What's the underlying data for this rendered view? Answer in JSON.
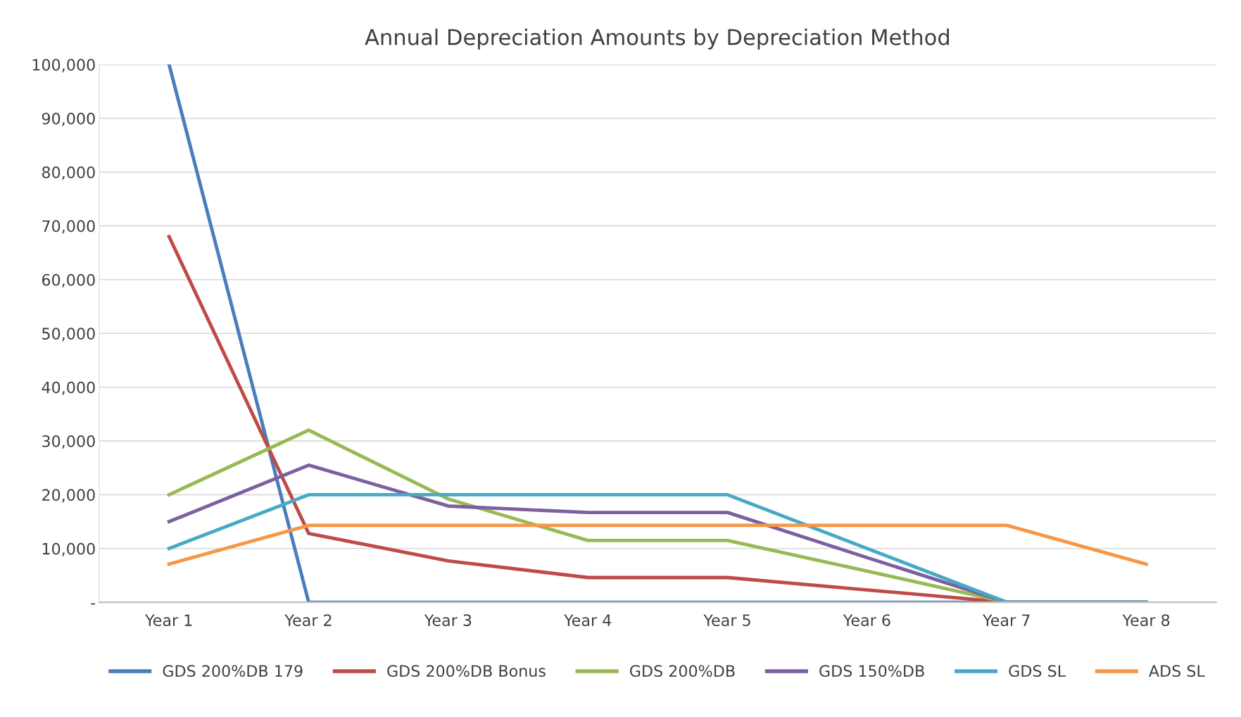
{
  "chart_data": {
    "type": "line",
    "title": "Annual Depreciation Amounts by Depreciation Method",
    "categories": [
      "Year 1",
      "Year 2",
      "Year 3",
      "Year 4",
      "Year 5",
      "Year 6",
      "Year 7",
      "Year 8"
    ],
    "series": [
      {
        "name": "GDS 200%DB 179",
        "color": "#4a7ebb",
        "values": [
          100000,
          0,
          0,
          0,
          0,
          0,
          0,
          0
        ]
      },
      {
        "name": "GDS 200%DB Bonus",
        "color": "#be4b48",
        "values": [
          68000,
          12800,
          7700,
          4600,
          4600,
          2300,
          0,
          0
        ]
      },
      {
        "name": "GDS 200%DB",
        "color": "#98b954",
        "values": [
          20000,
          32000,
          19200,
          11500,
          11500,
          5800,
          0,
          0
        ]
      },
      {
        "name": "GDS 150%DB",
        "color": "#7d60a0",
        "values": [
          15000,
          25500,
          17900,
          16700,
          16700,
          8300,
          0,
          0
        ]
      },
      {
        "name": "GDS SL",
        "color": "#46aac5",
        "values": [
          10000,
          20000,
          20000,
          20000,
          20000,
          10000,
          0,
          0
        ]
      },
      {
        "name": "ADS SL",
        "color": "#f79646",
        "values": [
          7100,
          14300,
          14300,
          14300,
          14300,
          14300,
          14300,
          7100
        ]
      }
    ],
    "ylim": [
      0,
      100000
    ],
    "yticks": [
      {
        "value": 0,
        "label": "-"
      },
      {
        "value": 10000,
        "label": "10,000"
      },
      {
        "value": 20000,
        "label": "20,000"
      },
      {
        "value": 30000,
        "label": "30,000"
      },
      {
        "value": 40000,
        "label": "40,000"
      },
      {
        "value": 50000,
        "label": "50,000"
      },
      {
        "value": 60000,
        "label": "60,000"
      },
      {
        "value": 70000,
        "label": "70,000"
      },
      {
        "value": 80000,
        "label": "80,000"
      },
      {
        "value": 90000,
        "label": "90,000"
      },
      {
        "value": 100000,
        "label": "100,000"
      }
    ],
    "grid": "y",
    "legend": "bottom",
    "marker": "none",
    "line_style": "solid"
  }
}
